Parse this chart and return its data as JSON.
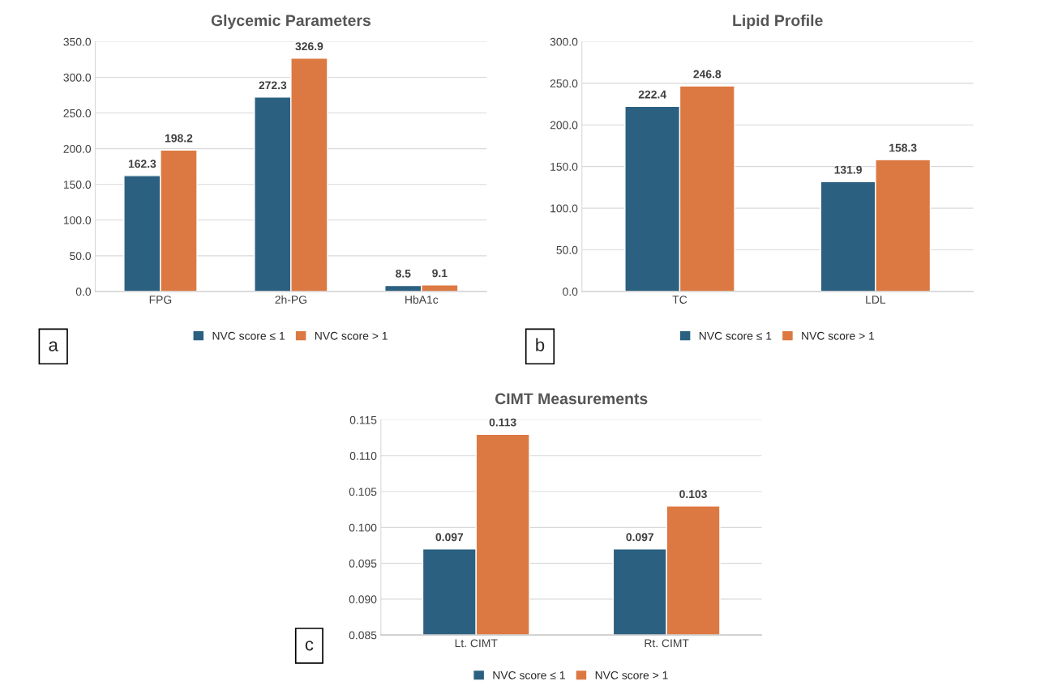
{
  "chart_data": [
    {
      "type": "bar",
      "title": "Glycemic Parameters",
      "categories": [
        "FPG",
        "2h-PG",
        "HbA1c"
      ],
      "series": [
        {
          "name": "NVC score ≤ 1",
          "color": "#2b6080",
          "values": [
            162.3,
            272.3,
            8.5
          ]
        },
        {
          "name": "NVC score > 1",
          "color": "#dc7942",
          "values": [
            198.2,
            326.9,
            9.1
          ]
        }
      ],
      "ylim": [
        0,
        350
      ],
      "yticks": [
        {
          "value": 0,
          "label": "0.0"
        },
        {
          "value": 50,
          "label": "50.0"
        },
        {
          "value": 100,
          "label": "100.0"
        },
        {
          "value": 150,
          "label": "150.0"
        },
        {
          "value": 200,
          "label": "200.0"
        },
        {
          "value": 250,
          "label": "250.0"
        },
        {
          "value": 300,
          "label": "300.0"
        },
        {
          "value": 350,
          "label": "350.0"
        }
      ],
      "grid": "y",
      "legend": "bottom",
      "data_labels": true,
      "annotations": [
        "a"
      ]
    },
    {
      "type": "bar",
      "title": "Lipid Profile",
      "categories": [
        "TC",
        "LDL"
      ],
      "series": [
        {
          "name": "NVC score ≤ 1",
          "color": "#2b6080",
          "values": [
            222.4,
            131.9
          ]
        },
        {
          "name": "NVC score > 1",
          "color": "#dc7942",
          "values": [
            246.8,
            158.3
          ]
        }
      ],
      "ylim": [
        0,
        300
      ],
      "yticks": [
        {
          "value": 0,
          "label": "0.0"
        },
        {
          "value": 50,
          "label": "50.0"
        },
        {
          "value": 100,
          "label": "100.0"
        },
        {
          "value": 150,
          "label": "150.0"
        },
        {
          "value": 200,
          "label": "200.0"
        },
        {
          "value": 250,
          "label": "250.0"
        },
        {
          "value": 300,
          "label": "300.0"
        }
      ],
      "grid": "y",
      "legend": "bottom",
      "data_labels": true,
      "annotations": [
        "b"
      ]
    },
    {
      "type": "bar",
      "title": "CIMT Measurements",
      "categories": [
        "Lt. CIMT",
        "Rt. CIMT"
      ],
      "series": [
        {
          "name": "NVC score ≤ 1",
          "color": "#2b6080",
          "values": [
            0.097,
            0.097
          ]
        },
        {
          "name": "NVC score > 1",
          "color": "#dc7942",
          "values": [
            0.113,
            0.103
          ]
        }
      ],
      "ylim": [
        0.085,
        0.115
      ],
      "yticks": [
        {
          "value": 0.085,
          "label": "0.085"
        },
        {
          "value": 0.09,
          "label": "0.090"
        },
        {
          "value": 0.095,
          "label": "0.095"
        },
        {
          "value": 0.1,
          "label": "0.100"
        },
        {
          "value": 0.105,
          "label": "0.105"
        },
        {
          "value": 0.11,
          "label": "0.110"
        },
        {
          "value": 0.115,
          "label": "0.115"
        }
      ],
      "grid": "y",
      "legend": "bottom",
      "data_labels": true,
      "annotations": [
        "c"
      ]
    }
  ]
}
